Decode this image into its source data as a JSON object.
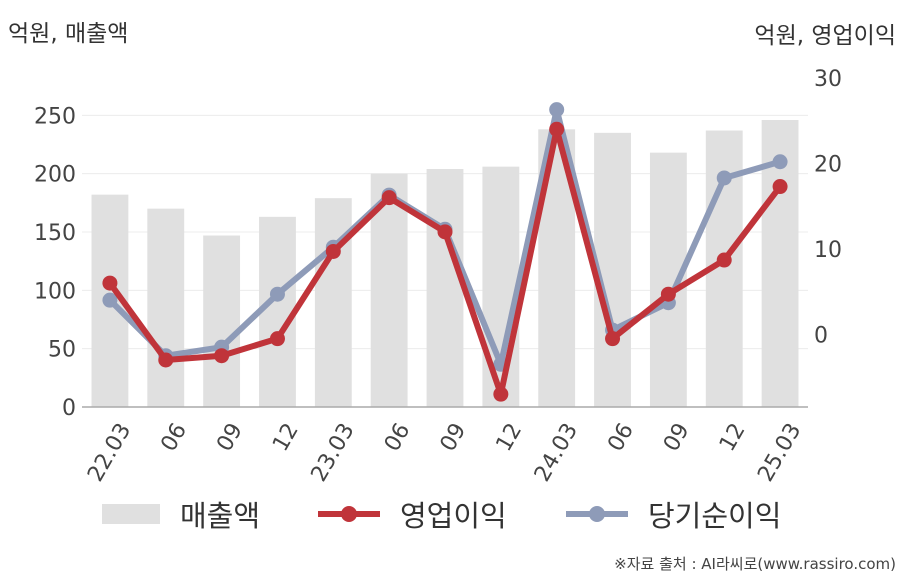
{
  "units": {
    "left": "억원, 매출액",
    "right": "억원, 영업이익"
  },
  "chart_data": {
    "type": "bar+line",
    "categories": [
      "22.03",
      "06",
      "09",
      "12",
      "23.03",
      "06",
      "09",
      "12",
      "24.03",
      "06",
      "09",
      "12",
      "25.03"
    ],
    "y_left": {
      "ticks": [
        0,
        50,
        100,
        150,
        200,
        250
      ],
      "range": [
        0,
        282
      ]
    },
    "y_right": {
      "ticks": [
        0,
        10,
        20,
        30
      ],
      "range": [
        -8.5,
        30
      ]
    },
    "series": [
      {
        "name": "매출액",
        "type": "bar",
        "axis": "left",
        "color": "#e0e0e0",
        "values": [
          182,
          170,
          147,
          163,
          179,
          200,
          204,
          206,
          238,
          235,
          218,
          237,
          246
        ]
      },
      {
        "name": "영업이익",
        "type": "line",
        "axis": "right",
        "color": "#c0343a",
        "values": [
          6.0,
          -3.0,
          -2.5,
          -0.5,
          9.7,
          16.0,
          12.0,
          -7.0,
          24.0,
          -0.5,
          4.7,
          8.7,
          17.3
        ]
      },
      {
        "name": "당기순이익",
        "type": "line",
        "axis": "right",
        "color": "#8e9bb8",
        "values": [
          4.0,
          -2.5,
          -1.5,
          4.7,
          10.2,
          16.3,
          12.3,
          -3.5,
          26.3,
          0.5,
          3.7,
          18.3,
          20.2
        ]
      }
    ],
    "grid": true,
    "legend_position": "bottom"
  },
  "legend": [
    {
      "label": "매출액",
      "kind": "bar",
      "color": "#e0e0e0"
    },
    {
      "label": "영업이익",
      "kind": "line",
      "color": "#c0343a"
    },
    {
      "label": "당기순이익",
      "kind": "line",
      "color": "#8e9bb8"
    }
  ],
  "source": "※자료 출처 : AI라씨로(www.rassiro.com)"
}
